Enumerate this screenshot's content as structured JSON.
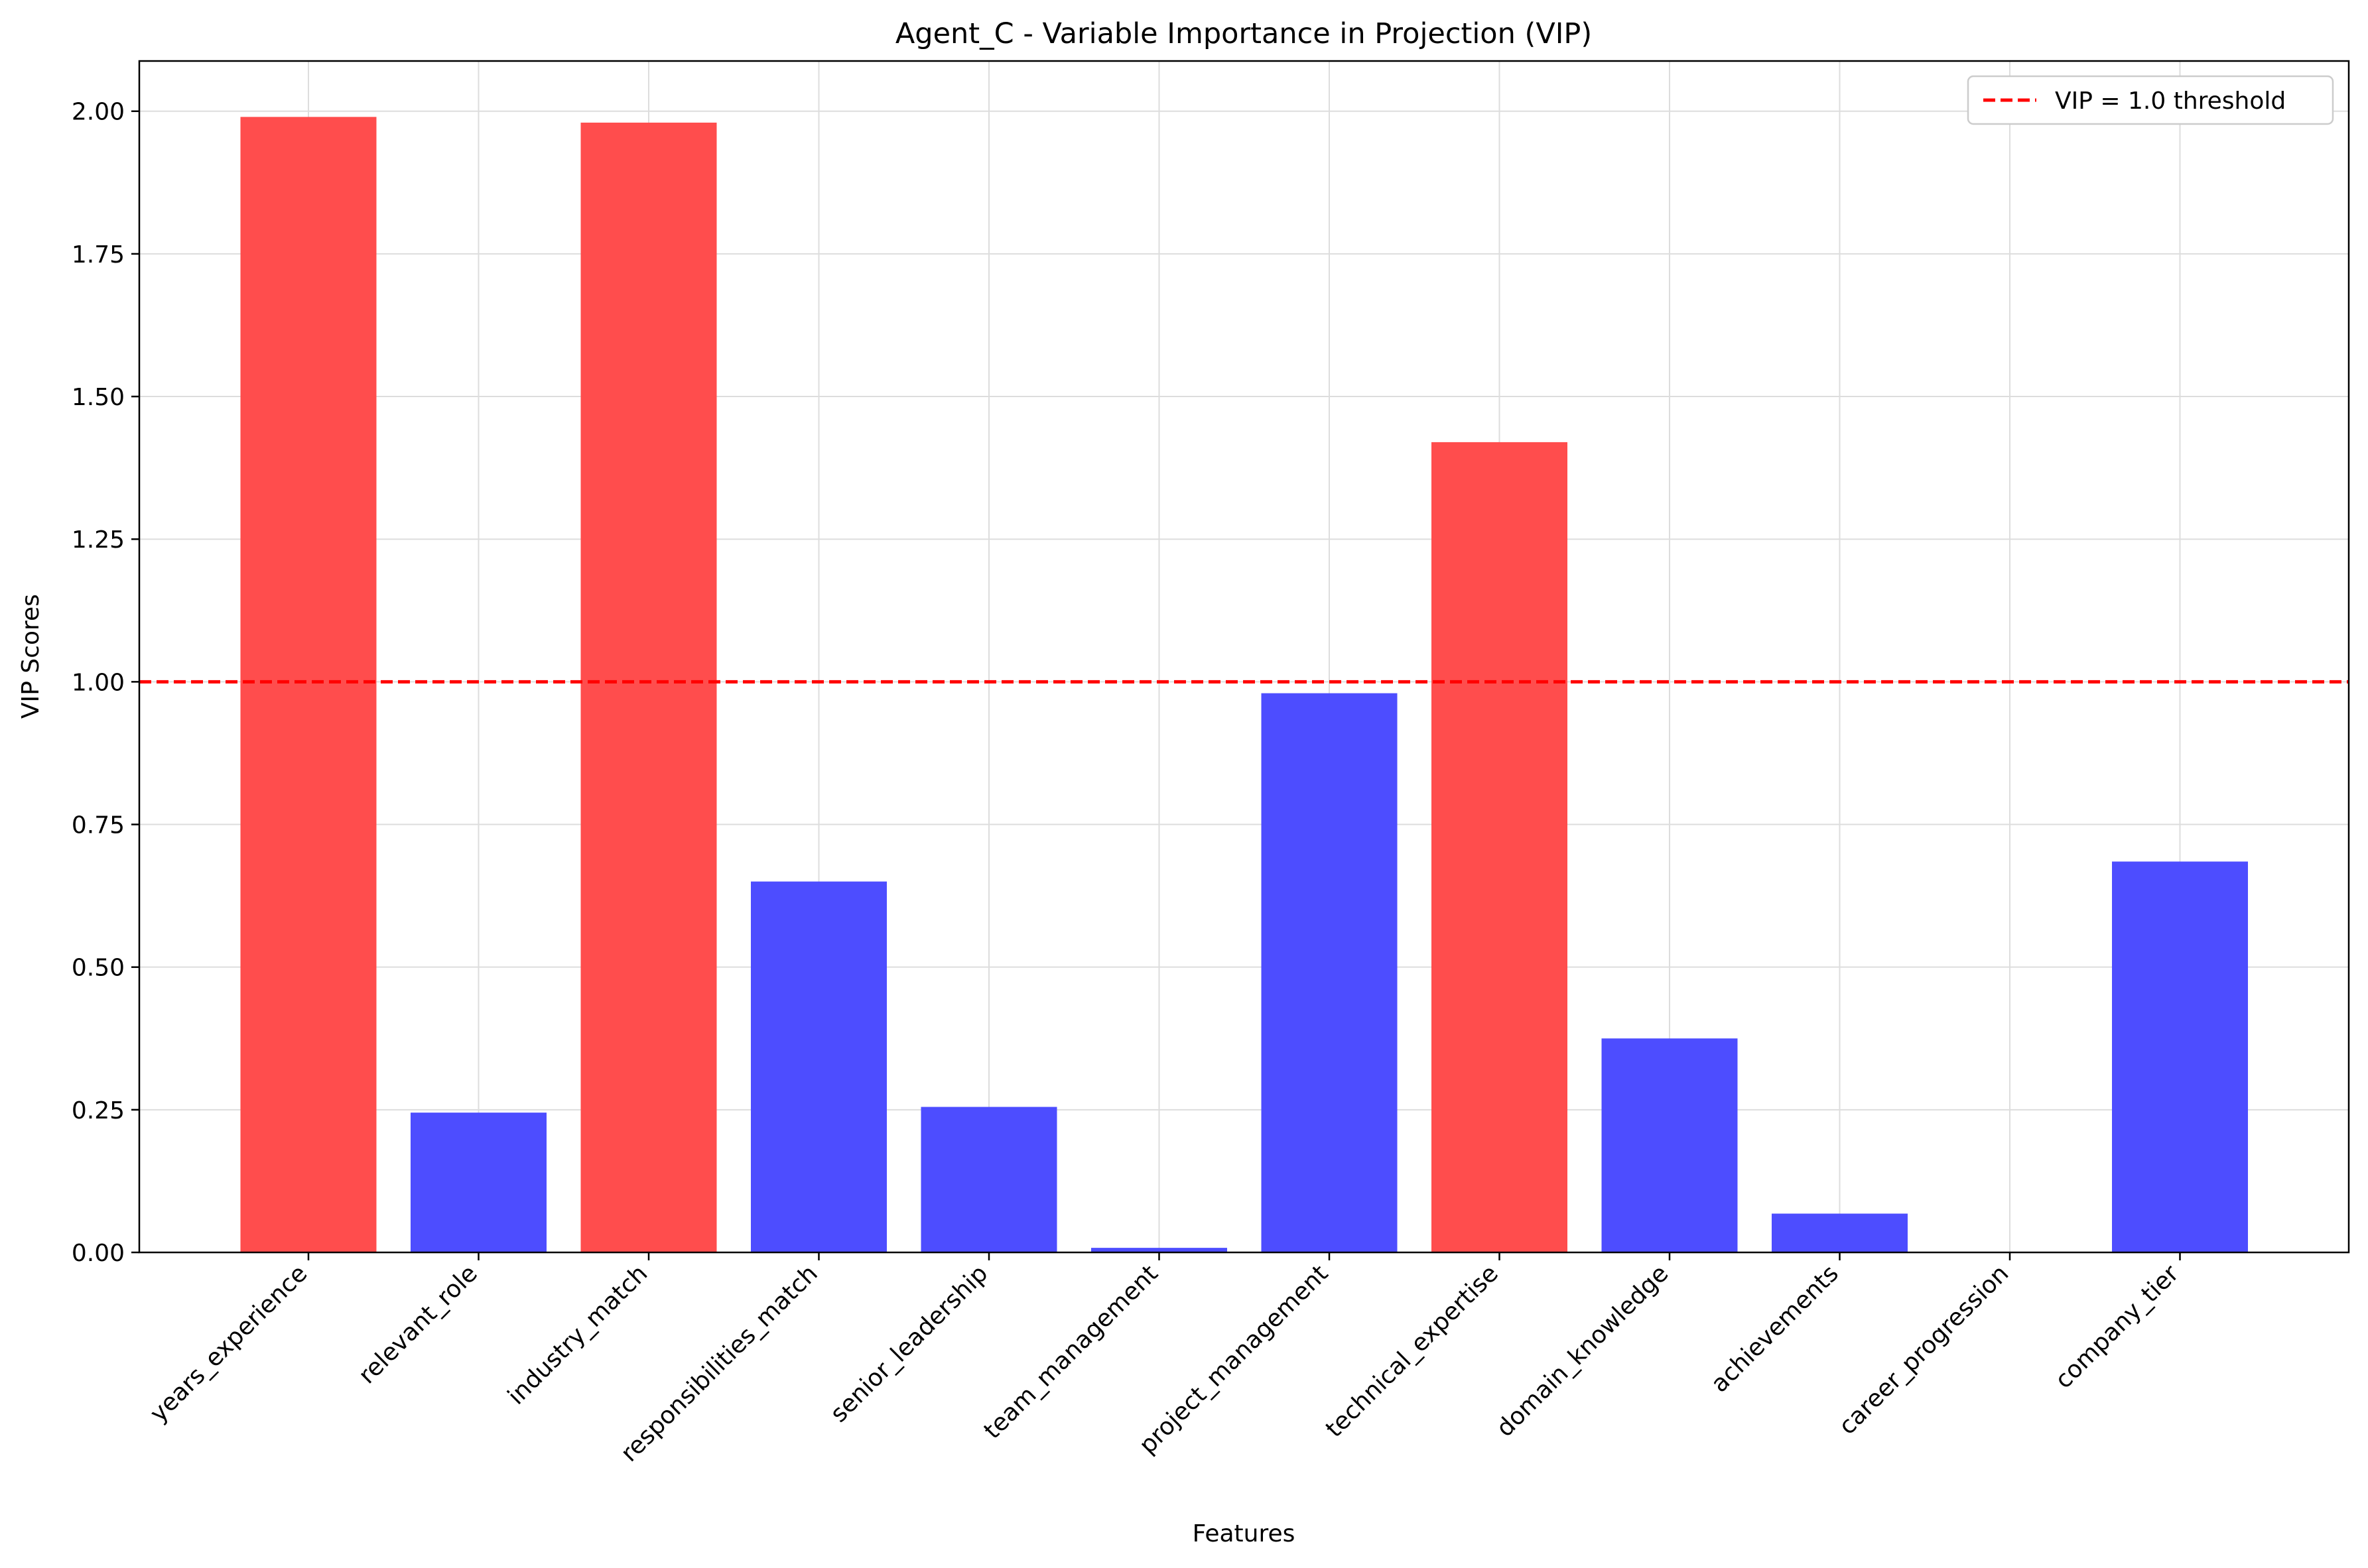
{
  "chart_data": {
    "type": "bar",
    "title": "Agent_C - Variable Importance in Projection (VIP)",
    "xlabel": "Features",
    "ylabel": "VIP Scores",
    "categories": [
      "years_experience",
      "relevant_role",
      "industry_match",
      "responsibilities_match",
      "senior_leadership",
      "team_management",
      "project_management",
      "technical_expertise",
      "domain_knowledge",
      "achievements",
      "career_progression",
      "company_tier"
    ],
    "values": [
      1.99,
      0.245,
      1.98,
      0.65,
      0.255,
      0.008,
      0.98,
      1.42,
      0.375,
      0.068,
      0.0,
      0.685
    ],
    "ylim": [
      0,
      2.088
    ],
    "yticks": [
      "0.00",
      "0.25",
      "0.50",
      "0.75",
      "1.00",
      "1.25",
      "1.50",
      "1.75",
      "2.00"
    ],
    "threshold": {
      "value": 1.0,
      "label": "VIP = 1.0 threshold",
      "color": "#ff0000"
    },
    "colors": {
      "above_threshold": "#ff4d4d",
      "below_threshold": "#4d4dff"
    },
    "grid": true,
    "legend_position": "top-right"
  }
}
